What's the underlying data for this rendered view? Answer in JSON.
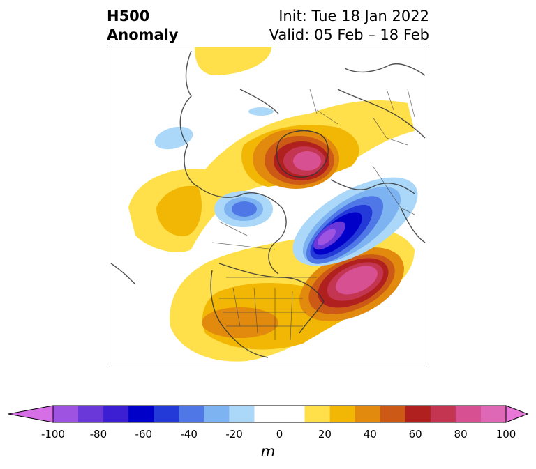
{
  "title": {
    "left_line1": "H500",
    "left_line2": "Anomaly",
    "right_line1": "Init: Tue 18 Jan 2022",
    "right_line2": "Valid: 05 Feb – 18 Feb"
  },
  "colorbar": {
    "unit": "m",
    "min": -100,
    "max": 100,
    "step": 10,
    "tick_labels": [
      "-100",
      "-80",
      "-60",
      "-40",
      "-20",
      "0",
      "20",
      "40",
      "60",
      "80",
      "100"
    ],
    "colors": [
      "#d66fe6",
      "#9e54e0",
      "#6a38d8",
      "#3d1fd3",
      "#0000c8",
      "#2339d8",
      "#4f78e6",
      "#7eb3f2",
      "#abd8f9",
      "#ffffff",
      "#ffffff",
      "#ffe04a",
      "#f2b705",
      "#e28a0e",
      "#cc5a16",
      "#b0201e",
      "#c43552",
      "#d65092",
      "#df68b6",
      "#e878d8"
    ]
  },
  "map": {
    "projection": "north-polar-stereographic",
    "field": "500 hPa geopotential height anomaly"
  }
}
